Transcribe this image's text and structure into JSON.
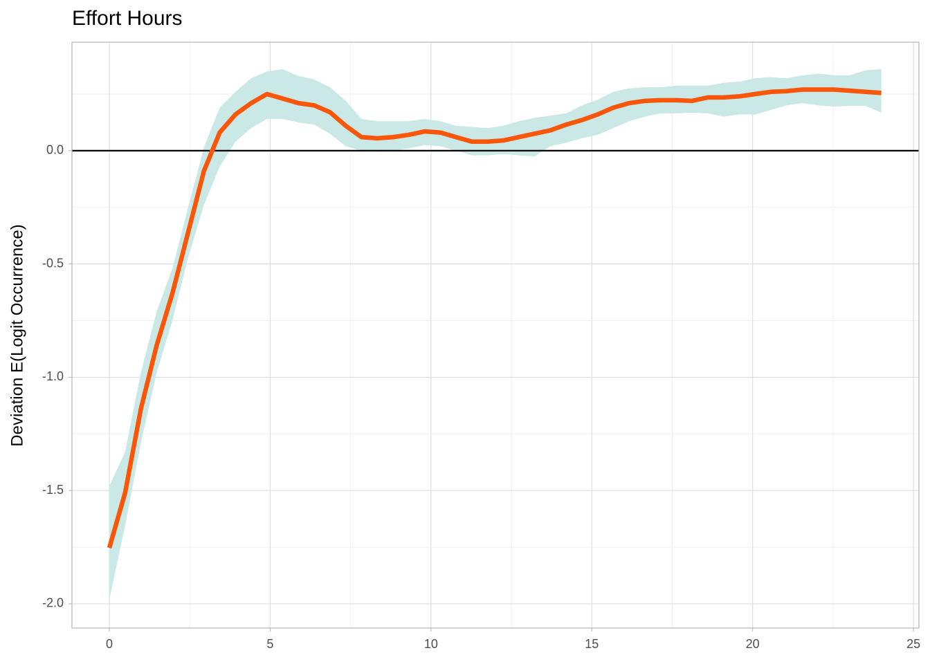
{
  "chart_data": {
    "type": "line",
    "title": "Effort Hours",
    "ylabel": "Deviation E(Logit Occurrence)",
    "x": [
      0,
      0.49,
      0.98,
      1.47,
      1.96,
      2.45,
      2.94,
      3.43,
      3.92,
      4.41,
      4.9,
      5.39,
      5.88,
      6.37,
      6.86,
      7.35,
      7.84,
      8.33,
      8.82,
      9.31,
      9.8,
      10.29,
      10.78,
      11.27,
      11.76,
      12.24,
      12.73,
      13.22,
      13.71,
      14.2,
      14.69,
      15.18,
      15.67,
      16.16,
      16.65,
      17.14,
      17.63,
      18.12,
      18.61,
      19.1,
      19.59,
      20.08,
      20.57,
      21.06,
      21.55,
      22.04,
      22.53,
      23.02,
      23.51,
      24
    ],
    "values": [
      -1.753,
      -1.51,
      -1.14,
      -0.86,
      -0.63,
      -0.36,
      -0.09,
      0.08,
      0.16,
      0.21,
      0.25,
      0.23,
      0.21,
      0.2,
      0.17,
      0.11,
      0.06,
      0.055,
      0.06,
      0.07,
      0.085,
      0.08,
      0.06,
      0.04,
      0.04,
      0.045,
      0.06,
      0.075,
      0.09,
      0.115,
      0.135,
      0.16,
      0.19,
      0.21,
      0.22,
      0.223,
      0.223,
      0.22,
      0.235,
      0.235,
      0.24,
      0.25,
      0.26,
      0.263,
      0.27,
      0.27,
      0.27,
      0.265,
      0.26,
      0.255
    ],
    "upper": [
      -1.48,
      -1.33,
      -0.98,
      -0.71,
      -0.52,
      -0.25,
      0.015,
      0.19,
      0.26,
      0.32,
      0.35,
      0.36,
      0.33,
      0.315,
      0.28,
      0.22,
      0.14,
      0.13,
      0.13,
      0.13,
      0.14,
      0.13,
      0.11,
      0.105,
      0.1,
      0.11,
      0.13,
      0.145,
      0.155,
      0.165,
      0.2,
      0.225,
      0.26,
      0.275,
      0.28,
      0.28,
      0.287,
      0.287,
      0.287,
      0.3,
      0.305,
      0.32,
      0.325,
      0.32,
      0.333,
      0.34,
      0.333,
      0.333,
      0.355,
      0.36
    ],
    "lower": [
      -1.98,
      -1.655,
      -1.29,
      -0.98,
      -0.75,
      -0.47,
      -0.24,
      -0.07,
      0.04,
      0.1,
      0.14,
      0.14,
      0.125,
      0.115,
      0.075,
      0.02,
      0,
      -0.005,
      0,
      0.01,
      0.025,
      0.02,
      0,
      -0.02,
      -0.02,
      -0.015,
      -0.02,
      -0.025,
      0.02,
      0.035,
      0.055,
      0.07,
      0.1,
      0.13,
      0.15,
      0.165,
      0.165,
      0.168,
      0.165,
      0.15,
      0.16,
      0.16,
      0.18,
      0.2,
      0.21,
      0.2,
      0.195,
      0.198,
      0.198,
      0.168
    ],
    "color": "#fa560a",
    "band_color": "#c9e8e6",
    "hline": 0,
    "xlim": [
      -1.162,
      25.17
    ],
    "xticks": [
      0,
      5,
      10,
      15,
      20,
      25
    ],
    "ylim": [
      -2.107,
      0.479
    ],
    "yticks": [
      {
        "value": -2,
        "label": "-2.0"
      },
      {
        "value": -1.5,
        "label": "-1.5"
      },
      {
        "value": -1,
        "label": "-1.0"
      },
      {
        "value": -0.5,
        "label": "-0.5"
      },
      {
        "value": 0,
        "label": "0.0"
      }
    ],
    "grid": true,
    "minor_grid": true
  }
}
